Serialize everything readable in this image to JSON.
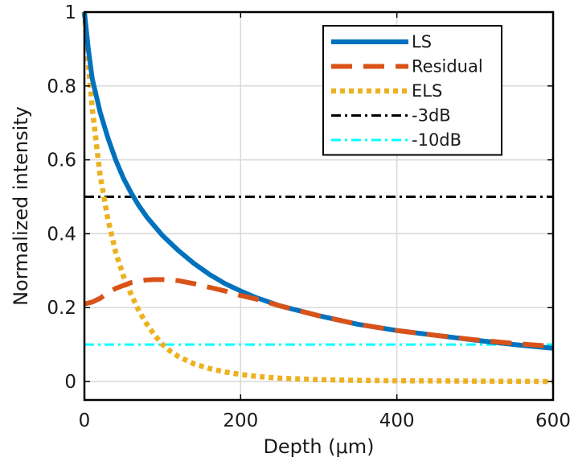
{
  "chart_data": {
    "type": "line",
    "title": "",
    "xlabel": "Depth (μm)",
    "ylabel": "Normalized intensity",
    "xlim": [
      0,
      600
    ],
    "ylim": [
      -0.05,
      1
    ],
    "xticks": [
      0,
      200,
      400,
      600
    ],
    "xtick_labels": [
      "0",
      "200",
      "400",
      "600"
    ],
    "yticks": [
      0,
      0.2,
      0.4,
      0.6,
      0.8,
      1
    ],
    "ytick_labels": [
      "0",
      "0.2",
      "0.4",
      "0.6",
      "0.8",
      "1"
    ],
    "grid": true,
    "legend_position": "top-right",
    "series": [
      {
        "name": "LS",
        "color": "#0072BD",
        "style": "solid",
        "x": [
          0,
          5,
          10,
          20,
          30,
          40,
          50,
          60,
          70,
          80,
          90,
          100,
          120,
          140,
          160,
          180,
          200,
          220,
          250,
          300,
          350,
          400,
          450,
          500,
          550,
          600
        ],
        "y": [
          1.0,
          0.9,
          0.82,
          0.73,
          0.66,
          0.6,
          0.55,
          0.51,
          0.475,
          0.445,
          0.42,
          0.395,
          0.355,
          0.32,
          0.29,
          0.265,
          0.245,
          0.227,
          0.205,
          0.178,
          0.155,
          0.138,
          0.125,
          0.112,
          0.1,
          0.09
        ]
      },
      {
        "name": "Residual",
        "color": "#D95319",
        "style": "dashed",
        "x": [
          0,
          10,
          20,
          30,
          40,
          50,
          60,
          70,
          80,
          90,
          100,
          120,
          140,
          160,
          180,
          200,
          220,
          250,
          300,
          350,
          400,
          450,
          500,
          550,
          600
        ],
        "y": [
          0.21,
          0.215,
          0.225,
          0.24,
          0.252,
          0.26,
          0.268,
          0.272,
          0.275,
          0.276,
          0.276,
          0.273,
          0.265,
          0.255,
          0.245,
          0.233,
          0.223,
          0.205,
          0.178,
          0.155,
          0.138,
          0.125,
          0.113,
          0.103,
          0.095
        ]
      },
      {
        "name": "ELS",
        "color": "#EDB120",
        "style": "dotted",
        "x": [
          0,
          5,
          10,
          20,
          30,
          40,
          50,
          60,
          70,
          80,
          90,
          100,
          110,
          120,
          140,
          160,
          180,
          200,
          220,
          250,
          300,
          350,
          400,
          500,
          600
        ],
        "y": [
          1.0,
          0.86,
          0.74,
          0.56,
          0.44,
          0.35,
          0.285,
          0.235,
          0.19,
          0.155,
          0.125,
          0.1,
          0.082,
          0.068,
          0.048,
          0.035,
          0.026,
          0.019,
          0.014,
          0.009,
          0.005,
          0.003,
          0.002,
          0.001,
          0.0
        ]
      },
      {
        "name": "-3dB",
        "color": "#000000",
        "style": "dashdot",
        "x": [
          0,
          600
        ],
        "y": [
          0.5,
          0.5
        ]
      },
      {
        "name": "-10dB",
        "color": "#00FFFF",
        "style": "dashdot",
        "x": [
          0,
          600
        ],
        "y": [
          0.1,
          0.1
        ]
      }
    ]
  }
}
